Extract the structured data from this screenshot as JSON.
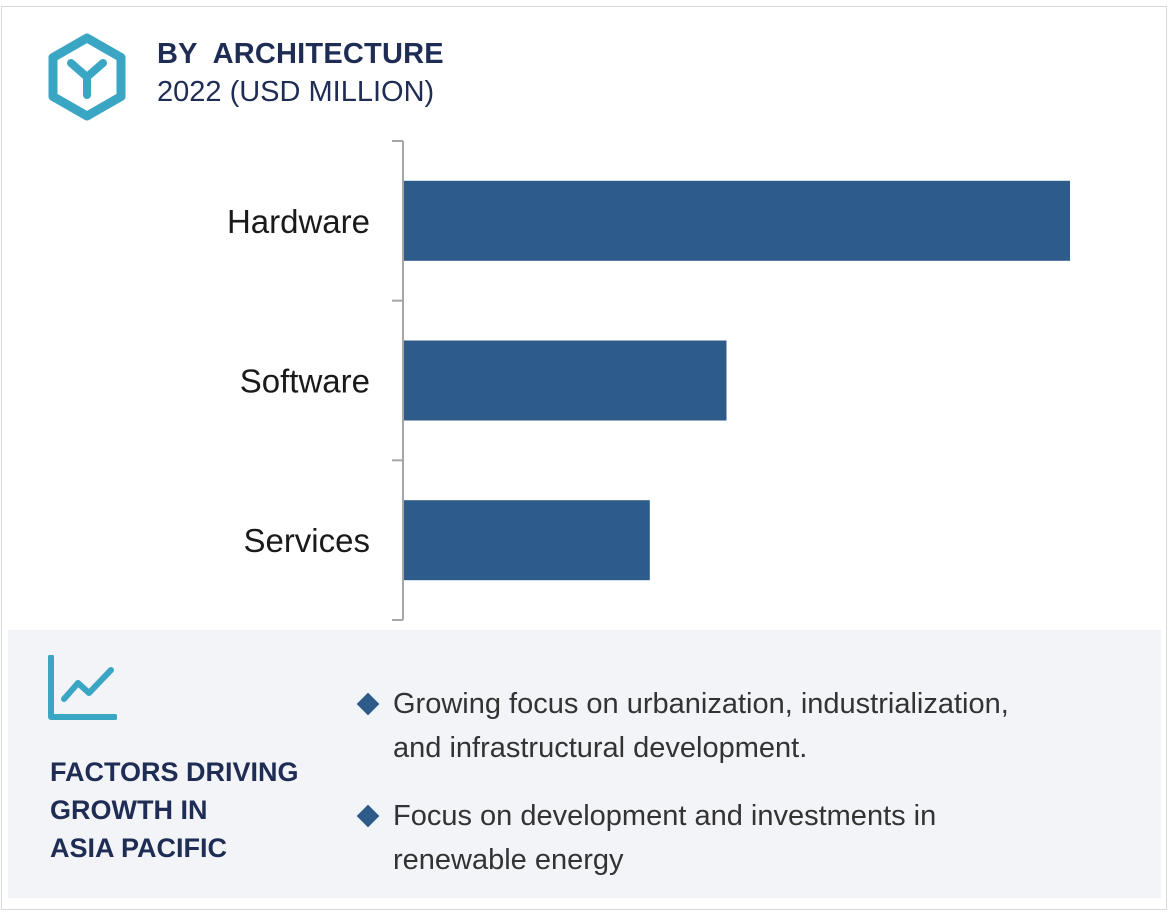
{
  "header": {
    "title": "BY  ARCHITECTURE",
    "subtitle": "2022 (USD MILLION)",
    "logo_icon": "hexagon-y-icon",
    "accent_color": "#3aa6c4",
    "title_color": "#1f2d55"
  },
  "chart_data": {
    "type": "bar",
    "orientation": "horizontal",
    "title": "BY  ARCHITECTURE",
    "subtitle": "2022 (USD MILLION)",
    "categories": [
      "Hardware",
      "Software",
      "Services"
    ],
    "values": [
      100,
      48.5,
      37
    ],
    "xlim": [
      0,
      100
    ],
    "grid": false,
    "legend": "none",
    "bar_color": "#2d5b8a"
  },
  "factors_panel": {
    "icon": "trend-line-chart-icon",
    "heading_lines": [
      "FACTORS DRIVING",
      "GROWTH IN",
      "ASIA PACIFIC"
    ],
    "items": [
      {
        "lines": [
          "Growing focus on urbanization, industrialization,",
          "and infrastructural development."
        ]
      },
      {
        "lines": [
          "Focus on development and investments in",
          "renewable energy"
        ]
      }
    ],
    "bullet_color": "#2d5b8a"
  }
}
